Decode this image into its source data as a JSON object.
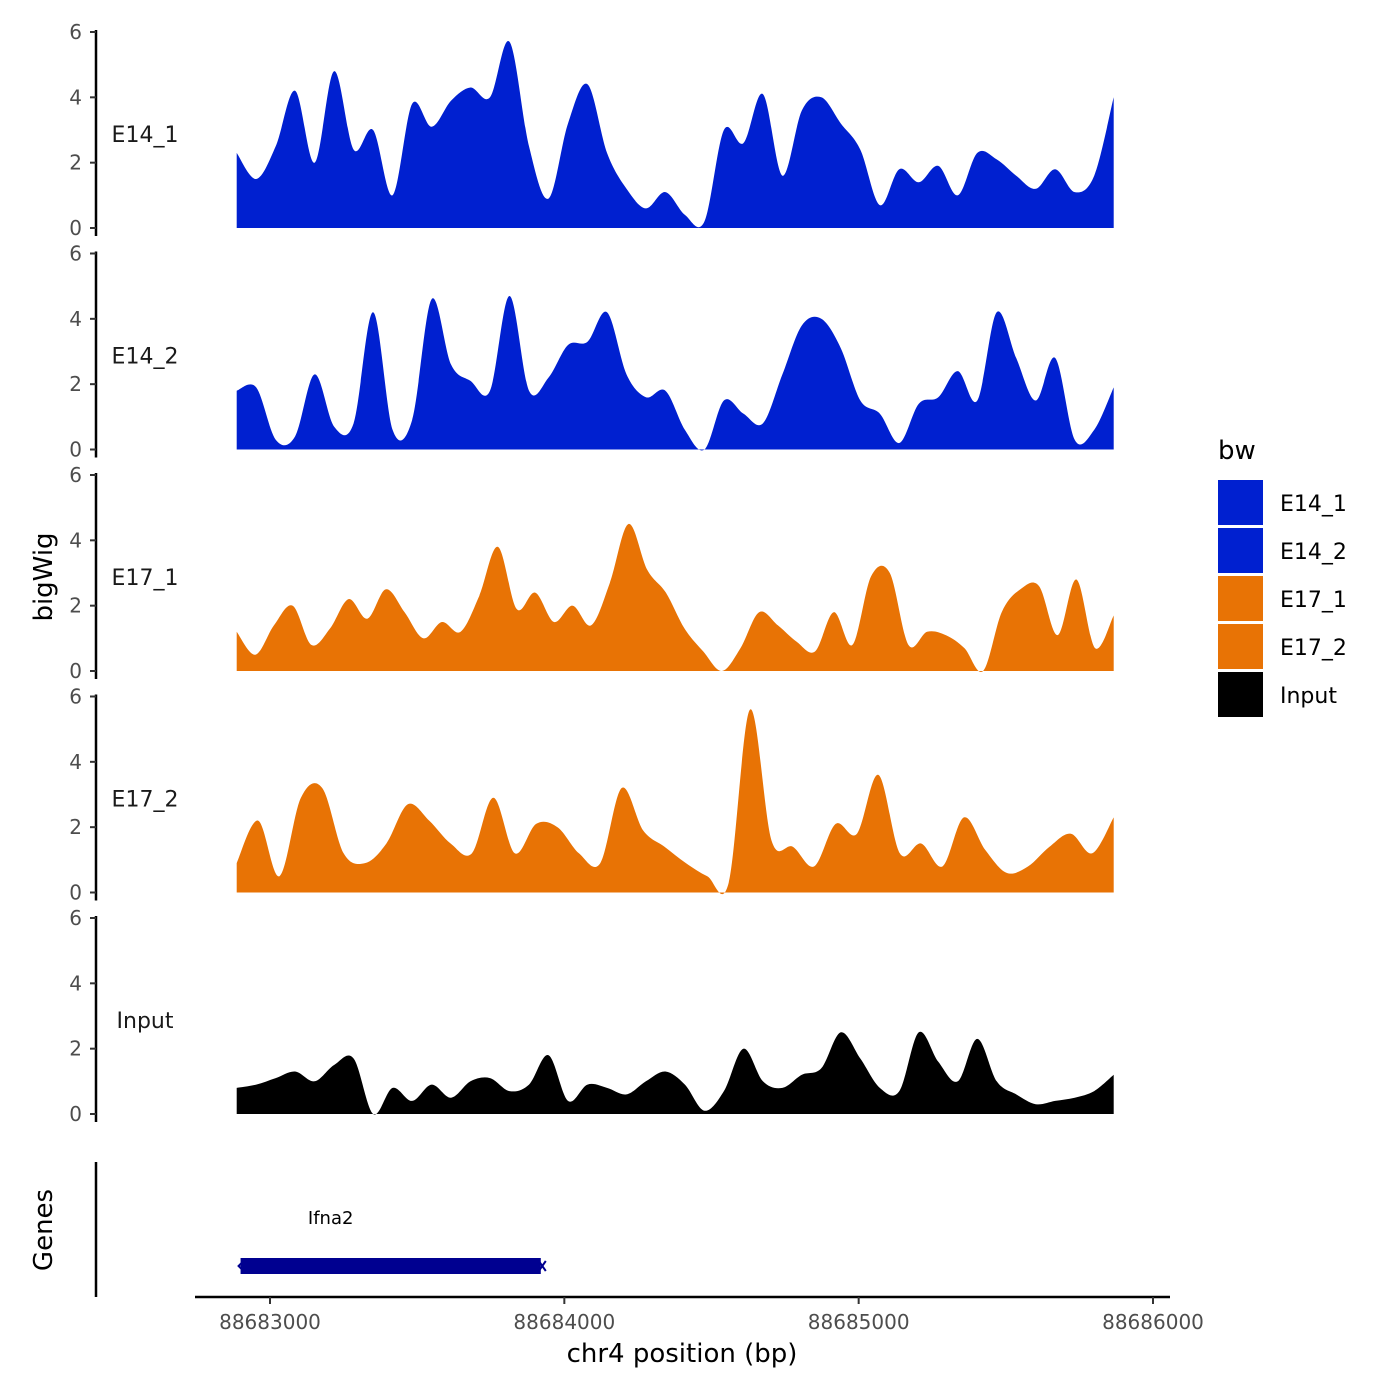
{
  "chart_data": {
    "type": "area",
    "title": "",
    "xlabel": "chr4 position (bp)",
    "ylabel": "bigWig",
    "genes_label": "Genes",
    "xlim": [
      88682700,
      88686050
    ],
    "x_ticks": [
      88683000,
      88684000,
      88685000,
      88686000
    ],
    "x_tick_labels": [
      "88683000",
      "88684000",
      "88685000",
      "88686000"
    ],
    "ylim": [
      0,
      6
    ],
    "y_ticks": [
      0,
      2,
      4,
      6
    ],
    "y_tick_labels": [
      "0",
      "2",
      "4",
      "6"
    ],
    "track_range": [
      88682880,
      88685880
    ],
    "sample_step": 100,
    "series": [
      {
        "name": "E14_1",
        "color": "#0020d0",
        "values": [
          2.3,
          1.5,
          2.5,
          4.2,
          2.0,
          4.8,
          2.4,
          3.0,
          1.0,
          3.8,
          3.1,
          3.9,
          4.3,
          4.0,
          5.7,
          2.5,
          0.9,
          3.2,
          4.4,
          2.3,
          1.2,
          0.6,
          1.1,
          0.4,
          0.2,
          3.0,
          2.6,
          4.1,
          1.6,
          3.6,
          4.0,
          3.2,
          2.4,
          0.7,
          1.8,
          1.4,
          1.9,
          1.0,
          2.3,
          2.1,
          1.6,
          1.2,
          1.8,
          1.1,
          1.6,
          4.0
        ]
      },
      {
        "name": "E14_2",
        "color": "#0020d0",
        "values": [
          1.8,
          1.9,
          0.3,
          0.4,
          2.3,
          0.7,
          0.8,
          4.2,
          0.6,
          0.9,
          4.6,
          2.6,
          2.1,
          1.8,
          4.7,
          1.8,
          2.2,
          3.2,
          3.3,
          4.2,
          2.3,
          1.6,
          1.8,
          0.6,
          0.0,
          1.5,
          1.1,
          0.8,
          2.3,
          3.8,
          4.0,
          3.1,
          1.5,
          1.1,
          0.2,
          1.4,
          1.6,
          2.4,
          1.5,
          4.2,
          2.8,
          1.5,
          2.8,
          0.3,
          0.6,
          1.9
        ]
      },
      {
        "name": "E17_1",
        "color": "#e87305",
        "values": [
          1.2,
          0.5,
          1.4,
          2.0,
          0.8,
          1.3,
          2.2,
          1.6,
          2.5,
          1.8,
          1.0,
          1.5,
          1.2,
          2.3,
          3.8,
          1.9,
          2.4,
          1.5,
          2.0,
          1.4,
          2.7,
          4.5,
          3.1,
          2.4,
          1.3,
          0.6,
          0.0,
          0.7,
          1.8,
          1.4,
          0.9,
          0.6,
          1.8,
          0.8,
          2.9,
          3.0,
          0.8,
          1.2,
          1.1,
          0.7,
          0.0,
          1.8,
          2.5,
          2.6,
          1.1,
          2.8,
          0.7,
          1.7
        ]
      },
      {
        "name": "E17_2",
        "color": "#e87305",
        "values": [
          0.9,
          2.2,
          0.5,
          2.9,
          3.2,
          1.2,
          0.9,
          1.5,
          2.7,
          2.2,
          1.5,
          1.2,
          2.9,
          1.2,
          2.1,
          2.0,
          1.2,
          0.9,
          3.2,
          1.9,
          1.4,
          0.9,
          0.5,
          0.3,
          5.6,
          1.6,
          1.4,
          0.8,
          2.1,
          1.8,
          3.6,
          1.2,
          1.5,
          0.8,
          2.3,
          1.3,
          0.6,
          0.8,
          1.4,
          1.8,
          1.2,
          2.3
        ]
      },
      {
        "name": "Input",
        "color": "#000000",
        "values": [
          0.8,
          0.9,
          1.1,
          1.3,
          1.0,
          1.5,
          1.7,
          0.0,
          0.8,
          0.4,
          0.9,
          0.5,
          1.0,
          1.1,
          0.7,
          0.9,
          1.8,
          0.4,
          0.9,
          0.8,
          0.6,
          1.0,
          1.3,
          0.9,
          0.1,
          0.7,
          2.0,
          1.0,
          0.8,
          1.2,
          1.4,
          2.5,
          1.7,
          0.8,
          0.7,
          2.5,
          1.6,
          1.0,
          2.3,
          1.0,
          0.6,
          0.3,
          0.4,
          0.5,
          0.7,
          1.2
        ]
      }
    ],
    "legend": {
      "title": "bw",
      "position": "right",
      "items": [
        "E14_1",
        "E14_2",
        "E17_1",
        "E17_2",
        "Input"
      ]
    },
    "genes": [
      {
        "name": "Ifna2",
        "start": 88682900,
        "end": 88683920,
        "color": "#000090"
      }
    ]
  }
}
